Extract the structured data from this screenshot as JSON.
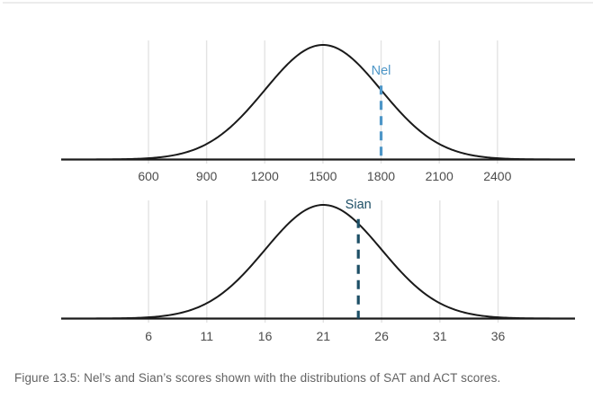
{
  "figure": {
    "caption": "Figure 13.5: Nel’s and Sian’s scores shown with the distributions of SAT and ACT scores."
  },
  "colors": {
    "curve": "#1a1a1a",
    "axis": "#1a1a1a",
    "gridline": "#e3e3e3",
    "tick_label": "#4d4d4d",
    "caption_text": "#636363",
    "top_rule": "#ececec"
  },
  "chart_data": [
    {
      "type": "area",
      "name": "SAT score distribution",
      "distribution": "normal",
      "mean": 1500,
      "sd": 300,
      "ticks": [
        600,
        900,
        1200,
        1500,
        1800,
        2100,
        2400
      ],
      "x_range": [
        150,
        2800
      ],
      "grid": true,
      "marker": {
        "label": "Nel",
        "value": 1800,
        "color": "#4d96c7"
      }
    },
    {
      "type": "area",
      "name": "ACT score distribution",
      "distribution": "normal",
      "mean": 21,
      "sd": 5,
      "ticks": [
        6,
        11,
        16,
        21,
        26,
        31,
        36
      ],
      "x_range": [
        -1.5,
        42.6
      ],
      "grid": true,
      "marker": {
        "label": "Sian",
        "value": 24,
        "color": "#1d4f66"
      }
    }
  ]
}
